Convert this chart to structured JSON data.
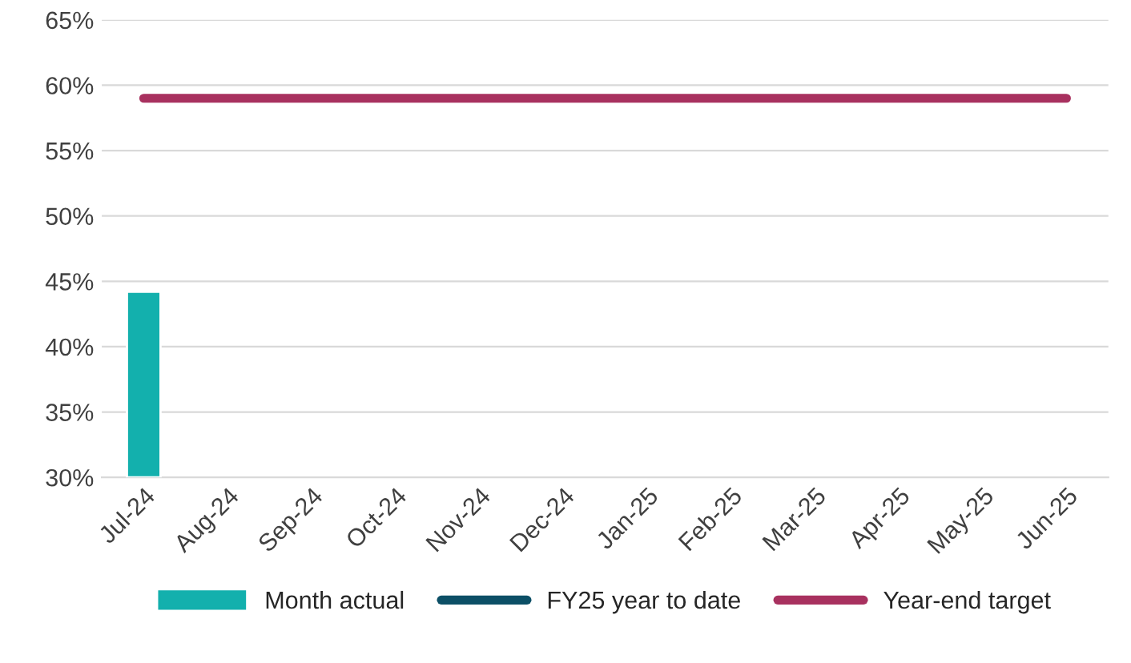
{
  "chart_data": {
    "type": "bar",
    "categories": [
      "Jul-24",
      "Aug-24",
      "Sep-24",
      "Oct-24",
      "Nov-24",
      "Dec-24",
      "Jan-25",
      "Feb-25",
      "Mar-25",
      "Apr-25",
      "May-25",
      "Jun-25"
    ],
    "series": [
      {
        "name": "Month actual",
        "color": "#13b0ad",
        "values": [
          44.2,
          null,
          null,
          null,
          null,
          null,
          null,
          null,
          null,
          null,
          null,
          null
        ]
      },
      {
        "name": "FY25 year to date",
        "type": "line",
        "color": "#0c4f66",
        "values": [
          null,
          null,
          null,
          null,
          null,
          null,
          null,
          null,
          null,
          null,
          null,
          null
        ]
      },
      {
        "name": "Year-end target",
        "type": "line",
        "color": "#a8315f",
        "values": [
          59,
          59,
          59,
          59,
          59,
          59,
          59,
          59,
          59,
          59,
          59,
          59
        ]
      }
    ],
    "ylim": [
      30,
      65
    ],
    "yticks": [
      {
        "value": 30,
        "label": "30%"
      },
      {
        "value": 35,
        "label": "35%"
      },
      {
        "value": 40,
        "label": "40%"
      },
      {
        "value": 45,
        "label": "45%"
      },
      {
        "value": 50,
        "label": "50%"
      },
      {
        "value": 55,
        "label": "55%"
      },
      {
        "value": 60,
        "label": "60%"
      },
      {
        "value": 65,
        "label": "65%"
      }
    ],
    "grid": "y",
    "legend": "bottom"
  }
}
